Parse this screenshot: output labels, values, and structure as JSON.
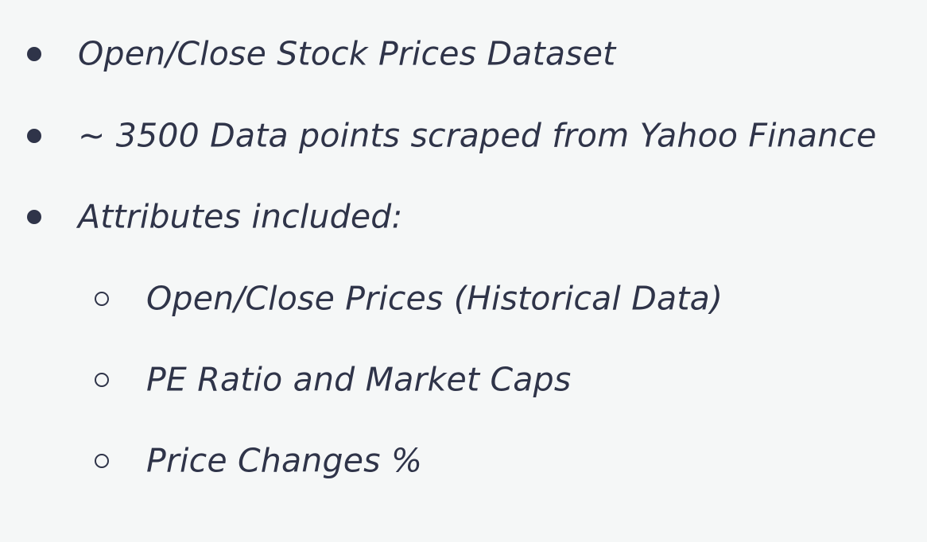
{
  "bullets": [
    {
      "text": "Open/Close Stock Prices Dataset"
    },
    {
      "text": "~ 3500 Data points scraped from Yahoo Finance"
    },
    {
      "text": "Attributes included:"
    }
  ],
  "sub_bullets": [
    {
      "text": "Open/Close Prices (Historical Data)"
    },
    {
      "text": "PE Ratio and Market Caps"
    },
    {
      "text": "Price Changes %"
    }
  ]
}
